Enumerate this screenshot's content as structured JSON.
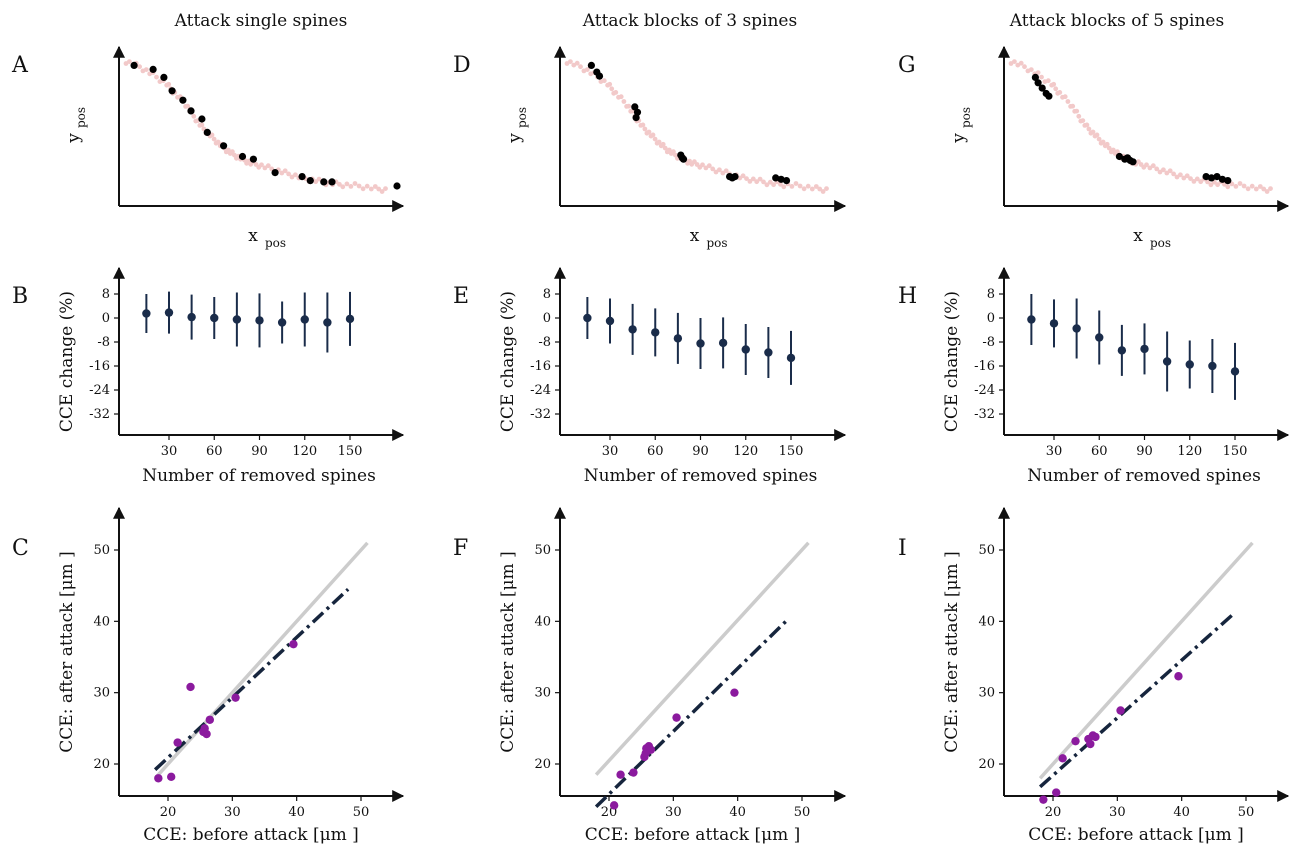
{
  "column_titles": [
    "Attack single spines",
    "Attack blocks of 3 spines",
    "Attack blocks of 5 spines"
  ],
  "panel_letters": [
    "A",
    "B",
    "C",
    "D",
    "E",
    "F",
    "G",
    "H",
    "I"
  ],
  "colors": {
    "axis": "#111111",
    "spine_all": "#f2c9c9",
    "spine_removed": "#000000",
    "errorbar": "#1a2c4a",
    "scatter_point": "#8b1a9e",
    "identity_line": "#cccccc",
    "fit_line": "#16253d"
  },
  "chart_data": [
    {
      "type": "scatter",
      "panel": "A",
      "title": "Attack single spines",
      "xlabel": "x",
      "xlabel_sub": "pos",
      "ylabel": "y",
      "ylabel_sub": "pos",
      "xlim": [
        0,
        100
      ],
      "ylim": [
        0,
        100
      ],
      "grid": false,
      "background_curve_x": [
        0,
        5,
        10,
        15,
        18,
        22,
        25,
        28,
        31,
        34,
        37,
        40,
        43,
        46,
        50,
        55,
        60,
        65,
        70,
        75,
        80,
        86,
        92,
        97
      ],
      "background_curve_y": [
        99,
        95,
        89,
        82,
        75,
        67,
        58,
        50,
        44,
        38,
        33,
        29,
        26,
        23,
        21,
        18,
        15,
        12,
        10,
        8,
        7,
        6,
        4,
        3
      ],
      "removed_points": {
        "x": [
          3,
          10,
          14,
          17,
          21,
          24,
          28,
          30,
          36,
          43,
          47,
          55,
          65,
          68,
          73,
          76,
          100
        ],
        "y": [
          96,
          93,
          87,
          77,
          70,
          62,
          56,
          46,
          36,
          28,
          26,
          16,
          13,
          10,
          9,
          9,
          6
        ]
      }
    },
    {
      "type": "scatter",
      "panel": "B",
      "xlabel": "Number of removed spines",
      "ylabel": "CCE change (%)",
      "xlim": [
        0,
        160
      ],
      "ylim": [
        -36,
        12
      ],
      "xticks": [
        30,
        60,
        90,
        120,
        150
      ],
      "yticks": [
        8,
        0,
        -8,
        -16,
        -24,
        -32
      ],
      "x": [
        15,
        30,
        45,
        60,
        75,
        90,
        105,
        120,
        135,
        150
      ],
      "y": [
        1.5,
        1.8,
        0.3,
        0.0,
        -0.5,
        -0.8,
        -1.5,
        -0.5,
        -1.5,
        -0.3
      ],
      "err": [
        6.5,
        7.0,
        7.5,
        7.0,
        9.0,
        9.0,
        7.0,
        9.0,
        10.0,
        9.0
      ]
    },
    {
      "type": "scatter",
      "panel": "C",
      "xlabel": "CCE: before attack [μm ]",
      "ylabel": "CCE: after attack [μm ]",
      "xlim": [
        13,
        56
      ],
      "ylim": [
        13,
        56
      ],
      "xticks": [
        20,
        30,
        40,
        50
      ],
      "yticks": [
        20,
        30,
        40,
        50
      ],
      "points_x": [
        18.5,
        20.5,
        21.5,
        23.5,
        25.5,
        25.7,
        26.0,
        26.5,
        30.5,
        39.5
      ],
      "points_y": [
        18.0,
        18.2,
        23.0,
        30.8,
        24.5,
        25.0,
        24.2,
        26.2,
        29.3,
        36.8
      ],
      "identity_line": {
        "x": [
          18,
          51
        ],
        "y": [
          18,
          51
        ]
      },
      "fit_line": {
        "x": [
          18,
          48
        ],
        "y": [
          19.2,
          44.5
        ]
      }
    },
    {
      "type": "scatter",
      "panel": "D",
      "title": "Attack blocks of 3 spines",
      "xlabel": "x",
      "xlabel_sub": "pos",
      "ylabel": "y",
      "ylabel_sub": "pos",
      "xlim": [
        0,
        100
      ],
      "ylim": [
        0,
        100
      ],
      "grid": false,
      "background_curve_x": [
        0,
        5,
        10,
        15,
        18,
        22,
        25,
        28,
        31,
        34,
        37,
        40,
        43,
        46,
        50,
        55,
        60,
        65,
        70,
        75,
        80,
        86,
        92,
        97
      ],
      "background_curve_y": [
        99,
        95,
        89,
        82,
        75,
        67,
        58,
        50,
        44,
        38,
        33,
        29,
        26,
        23,
        21,
        18,
        15,
        12,
        10,
        8,
        7,
        6,
        4,
        3
      ],
      "removed_points": {
        "x": [
          9,
          11,
          12,
          25,
          26,
          25.5,
          42,
          43,
          42.5,
          60,
          61,
          62,
          77,
          79,
          81
        ],
        "y": [
          96,
          91,
          88,
          65,
          61,
          57,
          29,
          26,
          27,
          13,
          12,
          13,
          12,
          11,
          10
        ]
      }
    },
    {
      "type": "scatter",
      "panel": "E",
      "xlabel": "Number of removed spines",
      "ylabel": "CCE change (%)",
      "xlim": [
        0,
        160
      ],
      "ylim": [
        -36,
        12
      ],
      "xticks": [
        30,
        60,
        90,
        120,
        150
      ],
      "yticks": [
        8,
        0,
        -8,
        -16,
        -24,
        -32
      ],
      "x": [
        15,
        30,
        45,
        60,
        75,
        90,
        105,
        120,
        135,
        150
      ],
      "y": [
        0.0,
        -1.0,
        -3.8,
        -4.8,
        -6.8,
        -8.5,
        -8.3,
        -10.5,
        -11.5,
        -13.3
      ],
      "err": [
        7.0,
        7.5,
        8.5,
        8.0,
        8.5,
        8.5,
        8.5,
        8.5,
        8.5,
        9.0
      ]
    },
    {
      "type": "scatter",
      "panel": "F",
      "xlabel": "CCE: before attack [μm ]",
      "ylabel": "CCE: after attack [μm ]",
      "xlim": [
        13,
        56
      ],
      "ylim": [
        13,
        56
      ],
      "xticks": [
        20,
        30,
        40,
        50
      ],
      "yticks": [
        20,
        30,
        40,
        50
      ],
      "points_x": [
        20.8,
        21.8,
        23.8,
        25.5,
        25.8,
        26.2,
        26.5,
        25.7,
        30.5,
        39.5
      ],
      "points_y": [
        14.2,
        18.5,
        18.8,
        21.0,
        22.2,
        22.5,
        22.0,
        21.5,
        26.5,
        30.0
      ],
      "identity_line": {
        "x": [
          18,
          51
        ],
        "y": [
          18.5,
          51
        ]
      },
      "fit_line": {
        "x": [
          18,
          47.5
        ],
        "y": [
          14.0,
          40.0
        ]
      }
    },
    {
      "type": "scatter",
      "panel": "G",
      "title": "Attack blocks of 5 spines",
      "xlabel": "x",
      "xlabel_sub": "pos",
      "ylabel": "y",
      "ylabel_sub": "pos",
      "xlim": [
        0,
        100
      ],
      "ylim": [
        0,
        100
      ],
      "grid": false,
      "background_curve_x": [
        0,
        5,
        10,
        15,
        18,
        22,
        25,
        28,
        31,
        34,
        37,
        40,
        43,
        46,
        50,
        55,
        60,
        65,
        70,
        75,
        80,
        86,
        92,
        97
      ],
      "background_curve_y": [
        99,
        95,
        89,
        82,
        75,
        67,
        58,
        50,
        44,
        38,
        33,
        29,
        26,
        23,
        21,
        18,
        15,
        12,
        10,
        8,
        7,
        6,
        4,
        3
      ],
      "removed_points": {
        "x": [
          9,
          10,
          11.5,
          13,
          14,
          40,
          42,
          43,
          44,
          45,
          72,
          74,
          76,
          78,
          80
        ],
        "y": [
          87,
          83,
          79,
          75,
          73,
          28,
          26,
          27,
          25,
          24,
          13,
          12,
          13,
          11,
          10
        ]
      }
    },
    {
      "type": "scatter",
      "panel": "H",
      "xlabel": "Number of removed spines",
      "ylabel": "CCE change (%)",
      "xlim": [
        0,
        160
      ],
      "ylim": [
        -36,
        12
      ],
      "xticks": [
        30,
        60,
        90,
        120,
        150
      ],
      "yticks": [
        8,
        0,
        -8,
        -16,
        -24,
        -32
      ],
      "x": [
        15,
        30,
        45,
        60,
        75,
        90,
        105,
        120,
        135,
        150
      ],
      "y": [
        -0.5,
        -1.8,
        -3.5,
        -6.5,
        -10.8,
        -10.3,
        -14.5,
        -15.5,
        -16.0,
        -17.8
      ],
      "err": [
        8.5,
        8.0,
        10.0,
        9.0,
        8.5,
        8.5,
        10.0,
        8.0,
        9.0,
        9.5
      ]
    },
    {
      "type": "scatter",
      "panel": "I",
      "xlabel": "CCE: before attack [μm ]",
      "ylabel": "CCE: after attack [μm ]",
      "xlim": [
        13,
        56
      ],
      "ylim": [
        13,
        56
      ],
      "xticks": [
        20,
        30,
        40,
        50
      ],
      "yticks": [
        20,
        30,
        40,
        50
      ],
      "points_x": [
        18.5,
        20.5,
        21.5,
        23.5,
        25.5,
        25.8,
        26.2,
        26.6,
        30.5,
        39.5
      ],
      "points_y": [
        15.0,
        16.0,
        20.8,
        23.2,
        23.5,
        22.8,
        24.0,
        23.8,
        27.5,
        32.3
      ],
      "identity_line": {
        "x": [
          18,
          51
        ],
        "y": [
          18,
          51
        ]
      },
      "fit_line": {
        "x": [
          18,
          48
        ],
        "y": [
          16.8,
          41.0
        ]
      }
    }
  ]
}
